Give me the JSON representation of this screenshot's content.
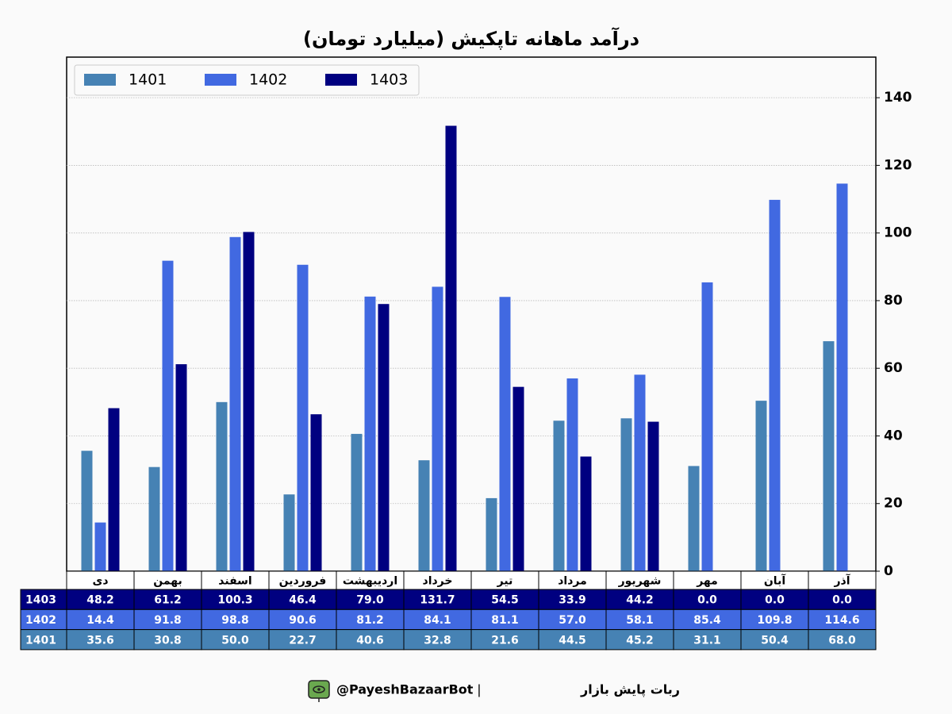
{
  "chart_data": {
    "type": "bar",
    "title": "درآمد ماهانه تاپکیش (میلیارد تومان)",
    "categories": [
      "دی",
      "بهمن",
      "اسفند",
      "فروردین",
      "اردیبهشت",
      "خرداد",
      "تیر",
      "مرداد",
      "شهریور",
      "مهر",
      "آبان",
      "آذر"
    ],
    "series": [
      {
        "name": "1401",
        "color": "#4682b4",
        "values": [
          35.6,
          30.8,
          50.0,
          22.7,
          40.6,
          32.8,
          21.6,
          44.5,
          45.2,
          31.1,
          50.4,
          68.0
        ],
        "value_labels": [
          "35.6",
          "30.8",
          "50.0",
          "22.7",
          "40.6",
          "32.8",
          "21.6",
          "44.5",
          "45.2",
          "31.1",
          "50.4",
          "68.0"
        ]
      },
      {
        "name": "1402",
        "color": "#4169e1",
        "values": [
          14.4,
          91.8,
          98.8,
          90.6,
          81.2,
          84.1,
          81.1,
          57.0,
          58.1,
          85.4,
          109.8,
          114.6
        ],
        "value_labels": [
          "14.4",
          "91.8",
          "98.8",
          "90.6",
          "81.2",
          "84.1",
          "81.1",
          "57.0",
          "58.1",
          "85.4",
          "109.8",
          "114.6"
        ]
      },
      {
        "name": "1403",
        "color": "#000080",
        "values": [
          48.2,
          61.2,
          100.3,
          46.4,
          79.0,
          131.7,
          54.5,
          33.9,
          44.2,
          0.0,
          0.0,
          0.0
        ],
        "value_labels": [
          "48.2",
          "61.2",
          "100.3",
          "46.4",
          "79.0",
          "131.7",
          "54.5",
          "33.9",
          "44.2",
          "0.0",
          "0.0",
          "0.0"
        ]
      }
    ],
    "ylim": [
      0,
      152
    ],
    "yticks": [
      0,
      20,
      40,
      60,
      80,
      100,
      120,
      140
    ],
    "grid": true,
    "legend": "upper-left",
    "footer": [
      "ربات پایش بازار",
      "|",
      "@PayeshBazaarBot"
    ]
  }
}
